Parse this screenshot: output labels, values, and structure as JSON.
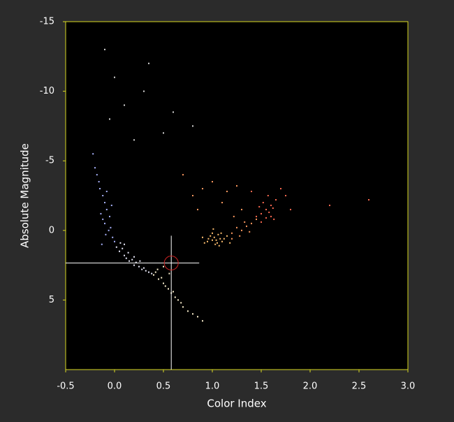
{
  "chart_data": {
    "type": "scatter",
    "x_label": "Color Index",
    "y_label": "Absolute Magnitude",
    "xlim": [
      -0.5,
      3.0
    ],
    "ylim": [
      10,
      -15
    ],
    "xticks": [
      -0.5,
      {
        "value": 0,
        "label": "0.0"
      },
      0.5,
      {
        "value": 1,
        "label": "1.0"
      },
      1.5,
      {
        "value": 2,
        "label": "2.0"
      },
      2.5,
      {
        "value": 3,
        "label": "3.0"
      }
    ],
    "yticks": [
      -15,
      -10,
      -5,
      0,
      5
    ],
    "grid": false,
    "background": "#000000",
    "frame_color": "#d8d820",
    "series": [
      {
        "color": "#aab4ff",
        "x": [
          -0.15,
          -0.12,
          -0.1,
          -0.08,
          -0.05,
          -0.18,
          -0.14,
          -0.2,
          -0.1,
          -0.06,
          -0.02,
          -0.16,
          -0.12,
          -0.08,
          -0.04,
          0.0,
          -0.22,
          -0.13,
          -0.09,
          -0.03
        ],
        "values": [
          -3,
          -2.5,
          -2,
          -1.5,
          -1,
          -4,
          -1.2,
          -4.5,
          -0.5,
          0,
          0.5,
          -3.5,
          -0.8,
          -2.8,
          -0.2,
          0.8,
          -5.5,
          1,
          0.3,
          -1.8
        ]
      },
      {
        "color": "#eeeeff",
        "x": [
          0.02,
          0.05,
          0.08,
          0.1,
          0.12,
          0.15,
          0.18,
          0.2,
          0.22,
          0.25,
          0.28,
          0.3,
          0.06,
          0.1,
          0.14,
          0.2,
          0.26,
          0.32,
          0.35,
          0.38
        ],
        "values": [
          1.2,
          1.5,
          1.3,
          1.8,
          2.0,
          2.2,
          2.1,
          2.5,
          2.3,
          2.6,
          2.8,
          2.7,
          0.9,
          1.0,
          1.6,
          1.9,
          2.2,
          2.9,
          3.0,
          3.1
        ]
      },
      {
        "color": "#fff3d0",
        "x": [
          0.4,
          0.42,
          0.45,
          0.48,
          0.5,
          0.52,
          0.55,
          0.58,
          0.6,
          0.62,
          0.65,
          0.68,
          0.7,
          0.75,
          0.8,
          0.85,
          0.9,
          0.44,
          0.5,
          0.56
        ],
        "values": [
          3.2,
          3.0,
          3.5,
          3.4,
          3.8,
          4.0,
          4.2,
          4.5,
          4.4,
          4.8,
          5.0,
          5.2,
          5.5,
          5.8,
          6.0,
          6.2,
          6.5,
          2.8,
          2.6,
          3.1
        ]
      },
      {
        "color": "#ffc070",
        "x": [
          0.9,
          0.95,
          1.0,
          1.02,
          1.05,
          1.08,
          1.1,
          0.98,
          1.03,
          1.06,
          1.12,
          0.92,
          1.0,
          1.15,
          1.07,
          0.96,
          1.04,
          1.09,
          1.18,
          1.01
        ],
        "values": [
          0.5,
          0.8,
          0.7,
          0.5,
          0.9,
          0.6,
          0.8,
          0.4,
          1.0,
          0.3,
          0.6,
          0.9,
          0.2,
          0.4,
          1.1,
          0.6,
          0.7,
          0.2,
          0.9,
          -0.1
        ]
      },
      {
        "color": "#ff9a60",
        "x": [
          1.2,
          1.25,
          1.3,
          1.35,
          1.4,
          1.45,
          1.2,
          1.28,
          1.33,
          1.38,
          1.22,
          1.3,
          0.8,
          0.9,
          1.0,
          1.1,
          0.7,
          0.85,
          1.15,
          1.25
        ],
        "values": [
          0.2,
          -0.2,
          0.0,
          -0.3,
          -0.5,
          -0.8,
          0.6,
          0.4,
          -0.6,
          0.1,
          -1.0,
          -1.5,
          -2.5,
          -3.0,
          -3.5,
          -2.0,
          -4.0,
          -1.5,
          -2.8,
          -3.2
        ]
      },
      {
        "color": "#ff6a50",
        "x": [
          1.45,
          1.5,
          1.55,
          1.58,
          1.6,
          1.62,
          1.5,
          1.55,
          1.6,
          1.52,
          1.65,
          1.57,
          1.48,
          1.7,
          1.63,
          1.4,
          1.75,
          1.8,
          2.2,
          2.6
        ],
        "values": [
          -1.0,
          -1.2,
          -1.5,
          -1.3,
          -1.8,
          -1.6,
          -0.6,
          -0.9,
          -1.0,
          -2.0,
          -2.2,
          -2.5,
          -1.7,
          -3.0,
          -0.8,
          -2.8,
          -2.5,
          -1.5,
          -1.8,
          -2.2
        ]
      },
      {
        "color": "#d8d8d8",
        "x": [
          -0.05,
          0.1,
          0.3,
          0.5,
          0.0,
          0.2,
          0.6,
          -0.1,
          0.35,
          0.8
        ],
        "values": [
          -8,
          -9,
          -10,
          -7,
          -11,
          -6.5,
          -8.5,
          -13,
          -12,
          -7.5
        ]
      }
    ],
    "marker": {
      "x": 0.58,
      "y": 2.34,
      "color": "#cc2222"
    }
  }
}
